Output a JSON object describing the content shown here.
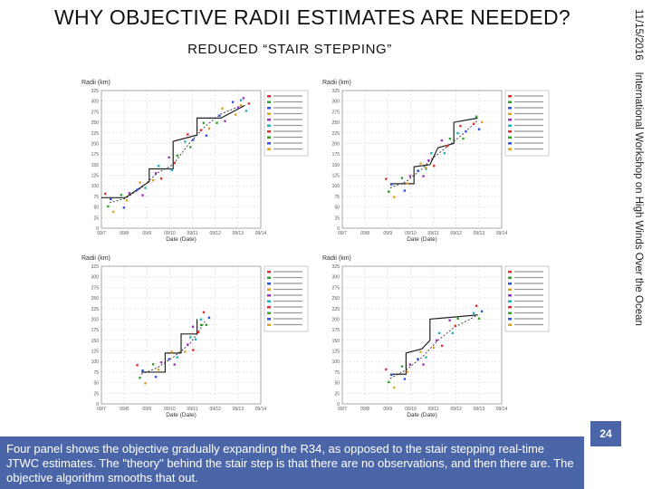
{
  "slide": {
    "title": "WHY OBJECTIVE RADII ESTIMATES ARE NEEDED?",
    "subtitle": "REDUCED “STAIR STEPPING”",
    "sidebar_date": "11/15/2016",
    "sidebar_text": "International Workshop on High Winds Over the Ocean",
    "page_number": "24",
    "notes": "Four panel shows the objective gradually expanding the R34, as opposed to the stair stepping real-time JTWC estimates.  The \"theory\" behind the stair step is that there are no observations, and then there are.  The objective algorithm smooths that out."
  },
  "colors": {
    "notes_bg": "#4a66a8",
    "grid": "#d6d6d6",
    "best_track": "#222222",
    "clipper": "#333333"
  },
  "panels": [
    {
      "y_label": "Radii (km)",
      "x_label": "Date (Date)",
      "y_ticks": [
        "325",
        "300",
        "275",
        "250",
        "225",
        "200",
        "175",
        "150",
        "125",
        "100",
        "75",
        "50",
        "25",
        "0"
      ],
      "x_ticks": [
        "09/7",
        "09/8",
        "09/9",
        "09/10",
        "09/11",
        "09/12",
        "09/13",
        "09/14"
      ],
      "best_track": [
        [
          0,
          72
        ],
        [
          0.15,
          72
        ],
        [
          0.3,
          110
        ],
        [
          0.3,
          140
        ],
        [
          0.45,
          140
        ],
        [
          0.45,
          205
        ],
        [
          0.6,
          220
        ],
        [
          0.6,
          260
        ],
        [
          0.75,
          260
        ],
        [
          0.9,
          290
        ]
      ],
      "objective": [
        [
          0.05,
          60
        ],
        [
          0.15,
          70
        ],
        [
          0.25,
          95
        ],
        [
          0.35,
          130
        ],
        [
          0.45,
          150
        ],
        [
          0.55,
          200
        ],
        [
          0.65,
          240
        ],
        [
          0.75,
          270
        ],
        [
          0.85,
          285
        ],
        [
          0.9,
          290
        ]
      ]
    },
    {
      "y_label": "Radii (km)",
      "x_label": "Date (Date)",
      "y_ticks": [
        "325",
        "300",
        "275",
        "250",
        "225",
        "200",
        "175",
        "150",
        "125",
        "100",
        "75",
        "50",
        "25",
        "0"
      ],
      "x_ticks": [
        "09/7",
        "09/8",
        "09/9",
        "09/10",
        "09/11",
        "09/12",
        "09/13",
        "09/14"
      ],
      "best_track": [
        [
          0.3,
          105
        ],
        [
          0.45,
          105
        ],
        [
          0.45,
          145
        ],
        [
          0.55,
          150
        ],
        [
          0.6,
          190
        ],
        [
          0.7,
          200
        ],
        [
          0.7,
          250
        ],
        [
          0.85,
          260
        ]
      ],
      "objective": [
        [
          0.3,
          95
        ],
        [
          0.4,
          110
        ],
        [
          0.5,
          140
        ],
        [
          0.55,
          160
        ],
        [
          0.65,
          190
        ],
        [
          0.75,
          220
        ],
        [
          0.85,
          255
        ]
      ]
    },
    {
      "y_label": "Radii (km)",
      "x_label": "Date (Date)",
      "y_ticks": [
        "325",
        "300",
        "275",
        "250",
        "225",
        "200",
        "175",
        "150",
        "125",
        "100",
        "75",
        "50",
        "25",
        "0"
      ],
      "x_ticks": [
        "09/7",
        "09/8",
        "09/9",
        "09/10",
        "09/11",
        "09/12",
        "09/13",
        "09/14"
      ],
      "best_track": [
        [
          0.25,
          75
        ],
        [
          0.4,
          75
        ],
        [
          0.4,
          120
        ],
        [
          0.5,
          120
        ],
        [
          0.5,
          165
        ],
        [
          0.6,
          165
        ],
        [
          0.6,
          200
        ]
      ],
      "objective": [
        [
          0.25,
          70
        ],
        [
          0.35,
          85
        ],
        [
          0.45,
          110
        ],
        [
          0.55,
          140
        ],
        [
          0.6,
          165
        ],
        [
          0.65,
          195
        ]
      ]
    },
    {
      "y_label": "Radii (km)",
      "x_label": "Date (Date)",
      "y_ticks": [
        "325",
        "300",
        "275",
        "250",
        "225",
        "200",
        "175",
        "150",
        "125",
        "100",
        "75",
        "50",
        "25",
        "0"
      ],
      "x_ticks": [
        "09/7",
        "09/8",
        "09/9",
        "09/10",
        "09/11",
        "09/12",
        "09/13",
        "09/14"
      ],
      "best_track": [
        [
          0.3,
          70
        ],
        [
          0.4,
          70
        ],
        [
          0.4,
          120
        ],
        [
          0.5,
          130
        ],
        [
          0.55,
          150
        ],
        [
          0.55,
          200
        ],
        [
          0.7,
          205
        ],
        [
          0.85,
          210
        ]
      ],
      "objective": [
        [
          0.3,
          60
        ],
        [
          0.4,
          80
        ],
        [
          0.5,
          110
        ],
        [
          0.6,
          150
        ],
        [
          0.7,
          180
        ],
        [
          0.85,
          210
        ]
      ]
    }
  ]
}
